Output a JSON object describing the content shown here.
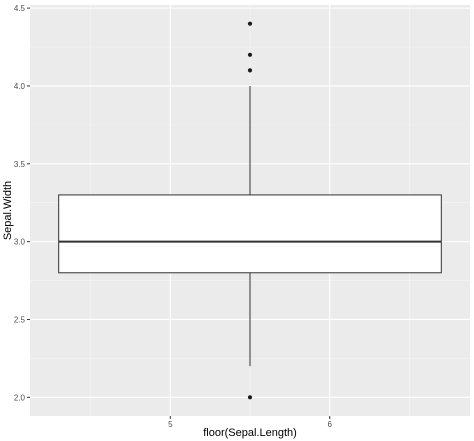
{
  "chart_data": {
    "type": "box",
    "title": "",
    "xlabel": "floor(Sepal.Length)",
    "ylabel": "Sepal.Width",
    "x_ticks": [
      5,
      6
    ],
    "x_tick_labels": [
      "5",
      "6"
    ],
    "xlim": [
      4.12,
      6.88
    ],
    "ylim": [
      1.88,
      4.52
    ],
    "y_ticks": [
      2.0,
      2.5,
      3.0,
      3.5,
      4.0,
      4.5
    ],
    "y_tick_labels": [
      "2.0",
      "2.5",
      "3.0",
      "3.5",
      "4.0",
      "4.5"
    ],
    "boxes": [
      {
        "xmin": 4.3,
        "xmax": 6.7,
        "x_center": 5.5,
        "whisker_low": 2.2,
        "q1": 2.8,
        "median": 3.0,
        "q3": 3.3,
        "whisker_high": 4.0,
        "outliers": [
          4.4,
          4.2,
          4.1,
          2.0
        ]
      }
    ],
    "grid": true,
    "legend": "none",
    "colors": {
      "panel_background": "#ebebeb",
      "grid_major": "#ffffff",
      "grid_minor": "#f5f5f5",
      "box_fill": "#ffffff",
      "box_outline": "#333333",
      "outlier": "#1a1a1a"
    }
  }
}
